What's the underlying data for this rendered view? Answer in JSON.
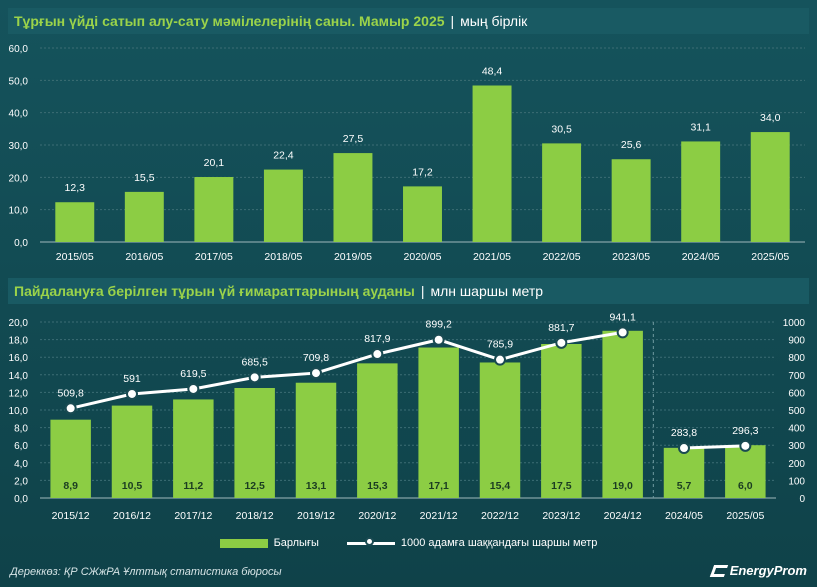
{
  "title1": {
    "main": "Тұрғын үйді сатып алу-сату мәмілелерінің саны. Мамыр 2025",
    "unit": "мың бірлік"
  },
  "title2": {
    "main": "Пайдалануға берілген тұрын үй ғимараттарының ауданы",
    "unit": "млн шаршы метр"
  },
  "source": "Дереккөз: ҚР СЖжРА Ұлттық статистика бюросы",
  "logo": "EnergyProm",
  "legend": {
    "bars": "Барлығы",
    "line": "1000 адамға шаққандағы шаршы метр"
  },
  "colors": {
    "bar": "#8ccd44",
    "line": "#ffffff",
    "background": "#11464f",
    "title": "#9bd34a"
  },
  "chart_data": [
    {
      "type": "bar",
      "categories": [
        "2015/05",
        "2016/05",
        "2017/05",
        "2018/05",
        "2019/05",
        "2020/05",
        "2021/05",
        "2022/05",
        "2023/05",
        "2024/05",
        "2025/05"
      ],
      "values": [
        12.3,
        15.5,
        20.1,
        22.4,
        27.5,
        17.2,
        48.4,
        30.5,
        25.6,
        31.1,
        34.0
      ],
      "labels": [
        "12,3",
        "15,5",
        "20,1",
        "22,4",
        "27,5",
        "17,2",
        "48,4",
        "30,5",
        "25,6",
        "31,1",
        "34,0"
      ],
      "yticks": [
        "0,0",
        "10,0",
        "20,0",
        "30,0",
        "40,0",
        "50,0",
        "60,0"
      ],
      "ylim": [
        0,
        60
      ],
      "grid": true
    },
    {
      "type": "bar+line",
      "categories": [
        "2015/12",
        "2016/12",
        "2017/12",
        "2018/12",
        "2019/12",
        "2020/12",
        "2021/12",
        "2022/12",
        "2023/12",
        "2024/12",
        "2024/05",
        "2025/05"
      ],
      "bars": [
        8.9,
        10.5,
        11.2,
        12.5,
        13.1,
        15.3,
        17.1,
        15.4,
        17.5,
        19.0,
        5.7,
        6.0
      ],
      "bar_labels": [
        "8,9",
        "10,5",
        "11,2",
        "12,5",
        "13,1",
        "15,3",
        "17,1",
        "15,4",
        "17,5",
        "19,0",
        "5,7",
        "6,0"
      ],
      "line": [
        509.8,
        591,
        619.5,
        685.5,
        709.8,
        817.9,
        899.2,
        785.9,
        881.7,
        941.1,
        283.8,
        296.3
      ],
      "line_labels": [
        "509,8",
        "591",
        "619,5",
        "685,5",
        "709,8",
        "817,9",
        "899,2",
        "785,9",
        "881,7",
        "941,1",
        "283,8",
        "296,3"
      ],
      "yticks_left": [
        "0,0",
        "2,0",
        "4,0",
        "6,0",
        "8,0",
        "10,0",
        "12,0",
        "14,0",
        "16,0",
        "18,0",
        "20,0"
      ],
      "yticks_right": [
        "0",
        "100",
        "200",
        "300",
        "400",
        "500",
        "600",
        "700",
        "800",
        "900",
        "1000"
      ],
      "ylim_left": [
        0,
        20
      ],
      "ylim_right": [
        0,
        1000
      ],
      "line_segments": [
        [
          0,
          9
        ],
        [
          10,
          11
        ]
      ],
      "divider_after_index": 9,
      "grid": true
    }
  ]
}
